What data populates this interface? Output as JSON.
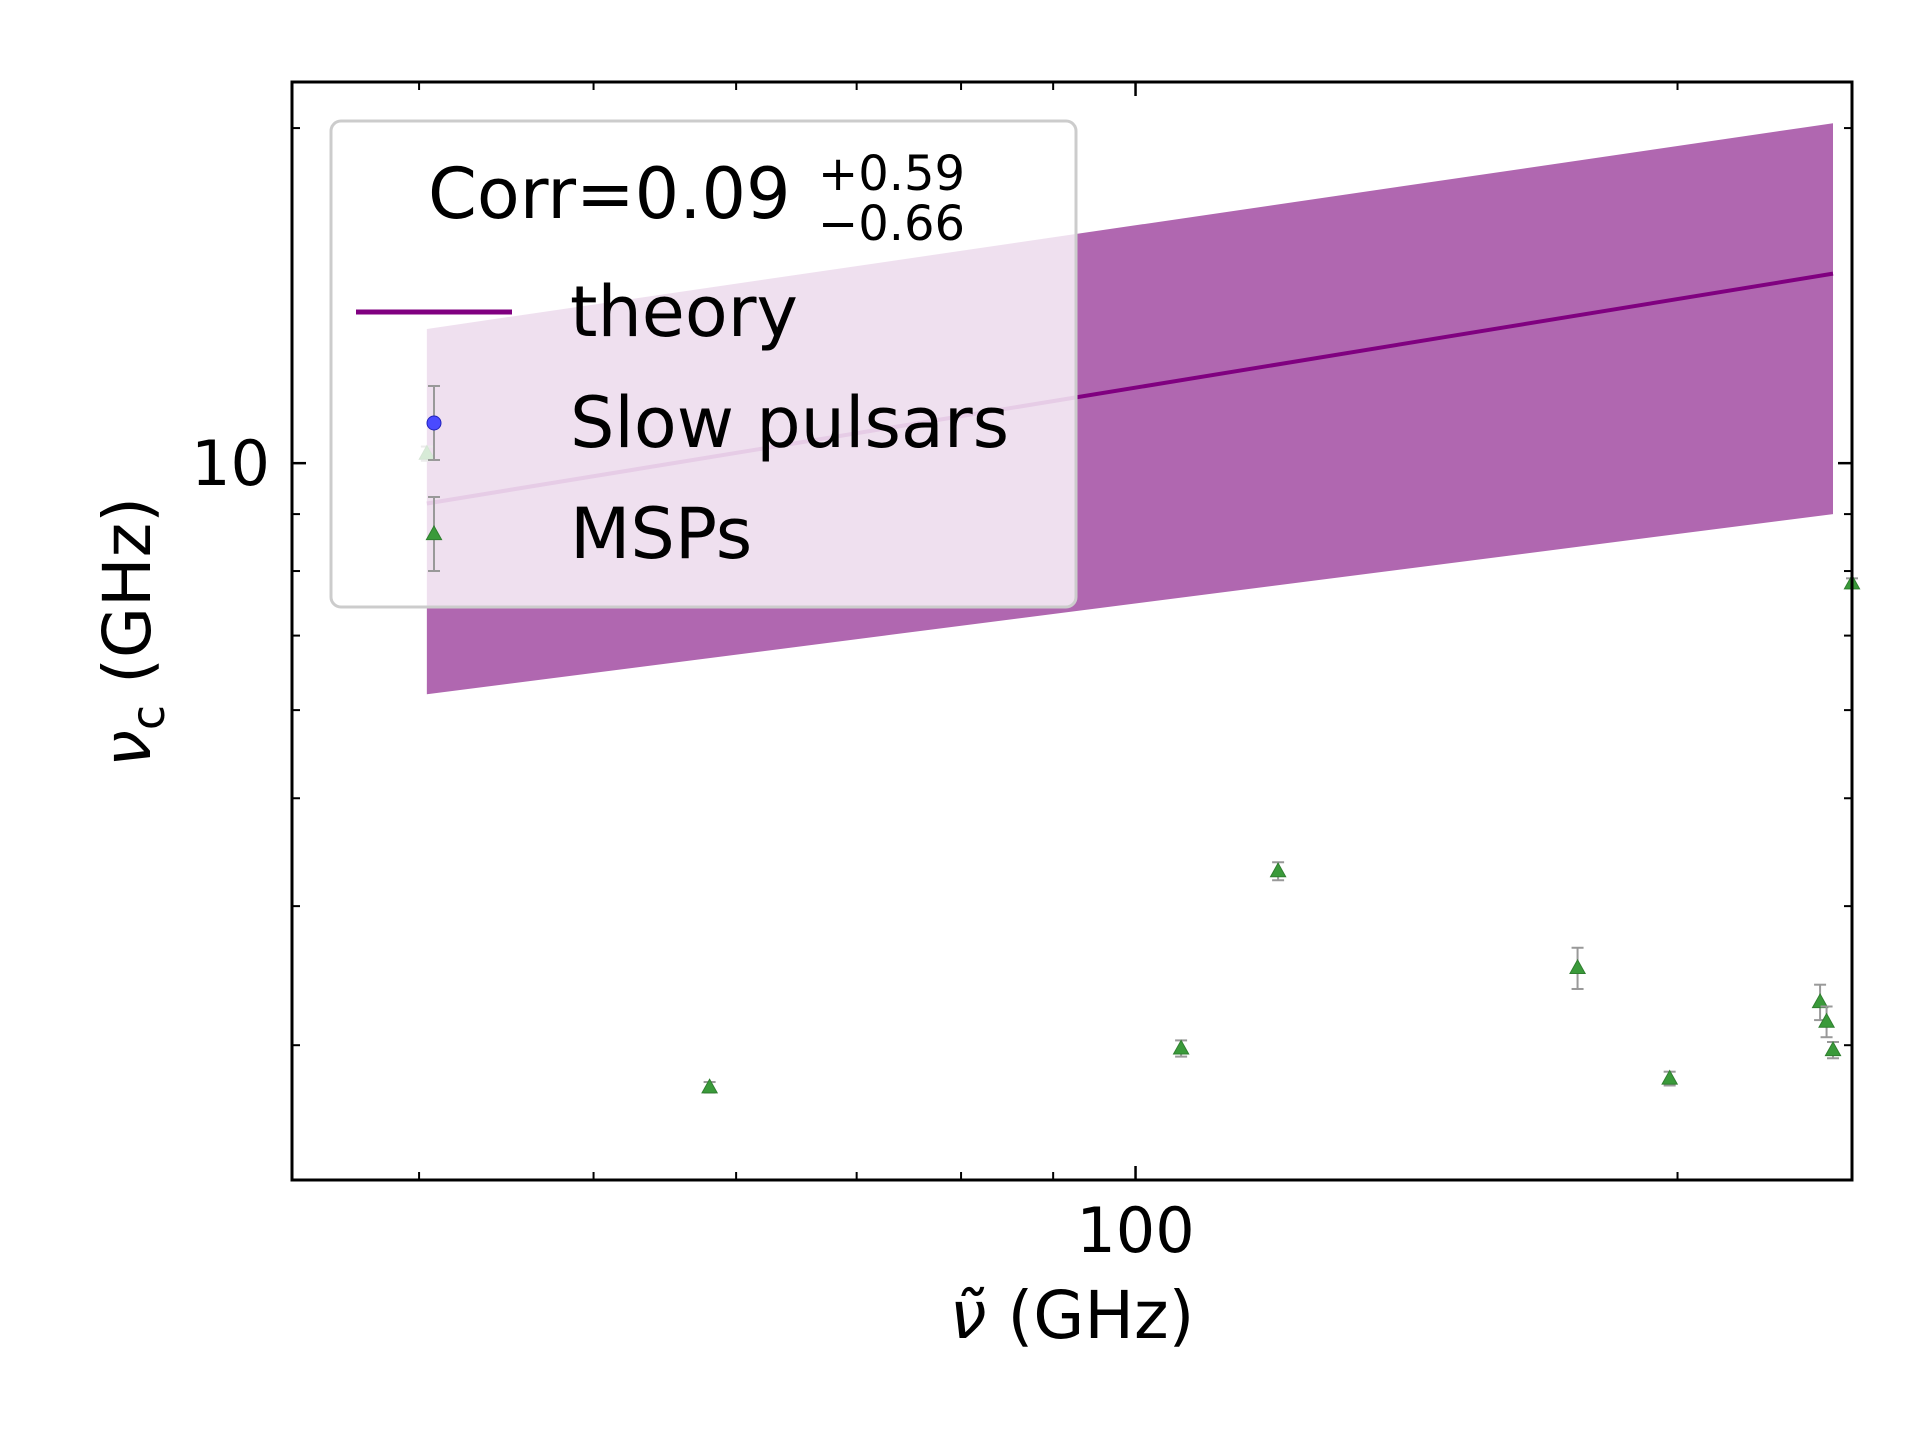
{
  "chart_data": {
    "type": "scatter",
    "xscale": "log",
    "yscale": "log",
    "xlabel_main": "ν̃",
    "xlabel_unit": "(GHz)",
    "ylabel_main": "ν",
    "ylabel_sub": "c",
    "ylabel_unit": "(GHz)",
    "xlim": [
      34,
      250
    ],
    "ylim": [
      2.27,
      22.0
    ],
    "xticks_major": [
      100
    ],
    "xtick_labels": [
      "100"
    ],
    "xticks_minor": [
      40,
      50,
      60,
      70,
      80,
      90,
      200
    ],
    "yticks_major": [
      10
    ],
    "ytick_labels": [
      "10"
    ],
    "yticks_minor": [
      3,
      4,
      5,
      6,
      7,
      8,
      9,
      20
    ],
    "grid": false,
    "legend": {
      "placement": "top-left",
      "title_main": "Corr=0.09",
      "title_sup": "+0.59",
      "title_sub": "−0.66",
      "entries": [
        {
          "label": "theory",
          "marker": "line",
          "color": "#800080"
        },
        {
          "label": "Slow pulsars",
          "marker": "circle",
          "color": "#4a4aff"
        },
        {
          "label": "MSPs",
          "marker": "triangle",
          "color": "#3a9a3a"
        }
      ]
    },
    "theory": {
      "name": "theory",
      "color": "#800080",
      "band_color": "#b067b0",
      "x": [
        40.4,
        244
      ],
      "y": [
        9.2,
        14.8
      ],
      "band_low": [
        6.2,
        9.0
      ],
      "band_high": [
        13.2,
        20.2
      ]
    },
    "series": [
      {
        "name": "Slow pulsars",
        "color": "#4a4aff",
        "marker": "circle",
        "x": [],
        "y": [],
        "yerr": []
      },
      {
        "name": "MSPs",
        "color": "#3a9a3a",
        "marker": "triangle",
        "x": [
          40.4,
          58,
          106,
          120,
          176,
          198,
          240,
          242,
          244,
          250
        ],
        "y": [
          10.2,
          2.75,
          2.98,
          4.3,
          3.52,
          2.8,
          3.28,
          3.15,
          2.97,
          7.8
        ],
        "yerr": [
          0.15,
          0.03,
          0.05,
          0.08,
          0.15,
          0.04,
          0.12,
          0.1,
          0.05,
          0.08
        ]
      }
    ]
  }
}
